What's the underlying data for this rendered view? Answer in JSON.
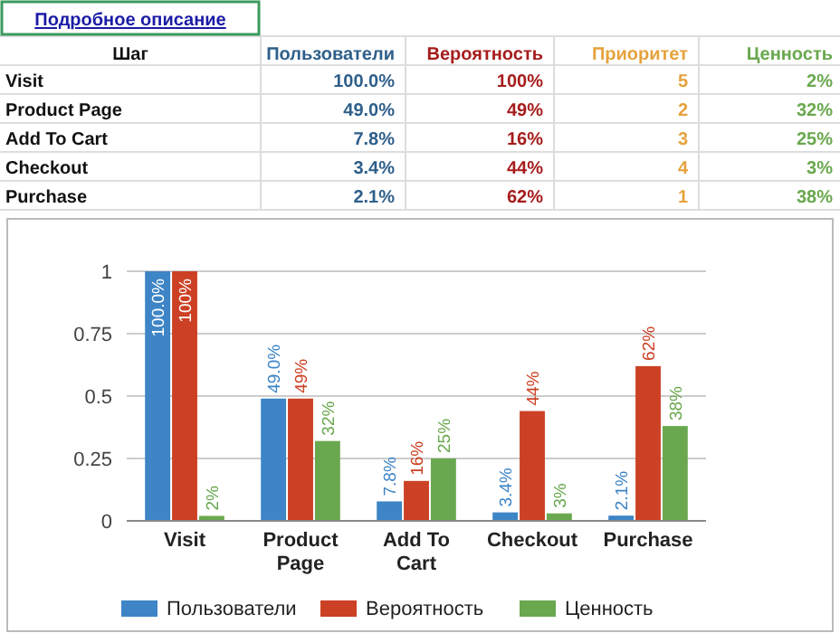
{
  "chart_data": [
    {
      "type": "other",
      "title": "Подробное описание",
      "xlabel": "Шаг",
      "categories": [
        "Visit",
        "Product Page",
        "Add To Cart",
        "Checkout",
        "Purchase"
      ],
      "series": [
        {
          "name": "Пользователи",
          "color": "#2e5f8a",
          "values": [
            100.0,
            49.0,
            7.8,
            3.4,
            2.1
          ],
          "value_labels": [
            "100.0%",
            "49.0%",
            "7.8%",
            "3.4%",
            "2.1%"
          ]
        },
        {
          "name": "Вероятность",
          "color": "#a61c1c",
          "values": [
            100,
            49,
            16,
            44,
            62
          ],
          "value_labels": [
            "100%",
            "49%",
            "16%",
            "44%",
            "62%"
          ]
        },
        {
          "name": "Приоритет",
          "color": "#e6a23c",
          "values": [
            5,
            2,
            3,
            4,
            1
          ],
          "value_labels": [
            "5",
            "2",
            "3",
            "4",
            "1"
          ]
        },
        {
          "name": "Ценность",
          "color": "#6aa84f",
          "values": [
            2,
            32,
            25,
            3,
            38
          ],
          "value_labels": [
            "2%",
            "32%",
            "25%",
            "3%",
            "38%"
          ]
        }
      ]
    },
    {
      "type": "bar",
      "categories": [
        "Visit",
        "Product Page",
        "Add To Cart",
        "Checkout",
        "Purchase"
      ],
      "ylim": [
        0,
        1
      ],
      "yticks": [
        0,
        0.25,
        0.5,
        0.75,
        1
      ],
      "grid": "y",
      "legend": "bottom",
      "series": [
        {
          "name": "Пользователи",
          "color": "#3d85c6",
          "values": [
            1,
            0.49,
            0.078,
            0.034,
            0.021
          ],
          "value_labels": [
            "100.0%",
            "49.0%",
            "7.8%",
            "3.4%",
            "2.1%"
          ]
        },
        {
          "name": "Вероятность",
          "color": "#cc4125",
          "values": [
            1,
            0.49,
            0.16,
            0.44,
            0.62
          ],
          "value_labels": [
            "100%",
            "49%",
            "16%",
            "44%",
            "62%"
          ]
        },
        {
          "name": "Ценность",
          "color": "#6aa84f",
          "values": [
            0.02,
            0.32,
            0.25,
            0.03,
            0.38
          ],
          "value_labels": [
            "2%",
            "32%",
            "25%",
            "3%",
            "38%"
          ]
        }
      ]
    }
  ]
}
